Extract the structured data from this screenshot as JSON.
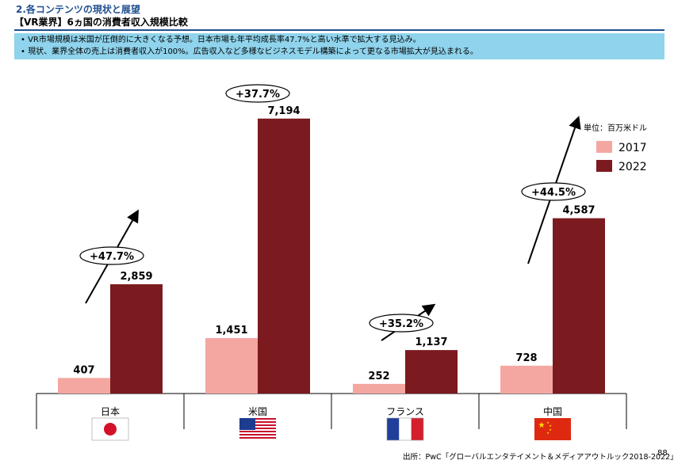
{
  "header": {
    "section_title": "2.各コンテンツの現状と展望",
    "subtitle": "【VR業界】6ヵ国の消費者収入規模比較"
  },
  "banner": {
    "items": [
      "VR市場規模は米国が圧倒的に大きくなる予想。日本市場も年平均成長率47.7%と高い水準で拡大する見込み。",
      "現状、業界全体の売上は消費者収入が100%。広告収入など多様なビジネスモデル構築によって更なる市場拡大が見込まれる。"
    ]
  },
  "chart_data": {
    "type": "bar",
    "categories": [
      "日本",
      "米国",
      "フランス",
      "中国"
    ],
    "series": [
      {
        "name": "2017",
        "values": [
          407,
          1451,
          252,
          728
        ],
        "color": "#f4a7a1"
      },
      {
        "name": "2022",
        "values": [
          2859,
          7194,
          1137,
          4587
        ],
        "color": "#7b1a1f"
      }
    ],
    "value_labels": {
      "2017": [
        "407",
        "1,451",
        "252",
        "728"
      ],
      "2022": [
        "2,859",
        "7,194",
        "1,137",
        "4,587"
      ]
    },
    "growth_labels": [
      "+47.7%",
      "+37.7%",
      "+35.2%",
      "+44.5%"
    ],
    "unit": "単位：百万米ドル",
    "ylim": [
      0,
      7500
    ],
    "legend_position": "right",
    "flags": [
      "japan-flag",
      "usa-flag",
      "france-flag",
      "china-flag"
    ]
  },
  "footer": {
    "source": "出所：PwC「グローバルエンタテイメント＆メディアアウトルック2018-2022」",
    "page": "88"
  }
}
